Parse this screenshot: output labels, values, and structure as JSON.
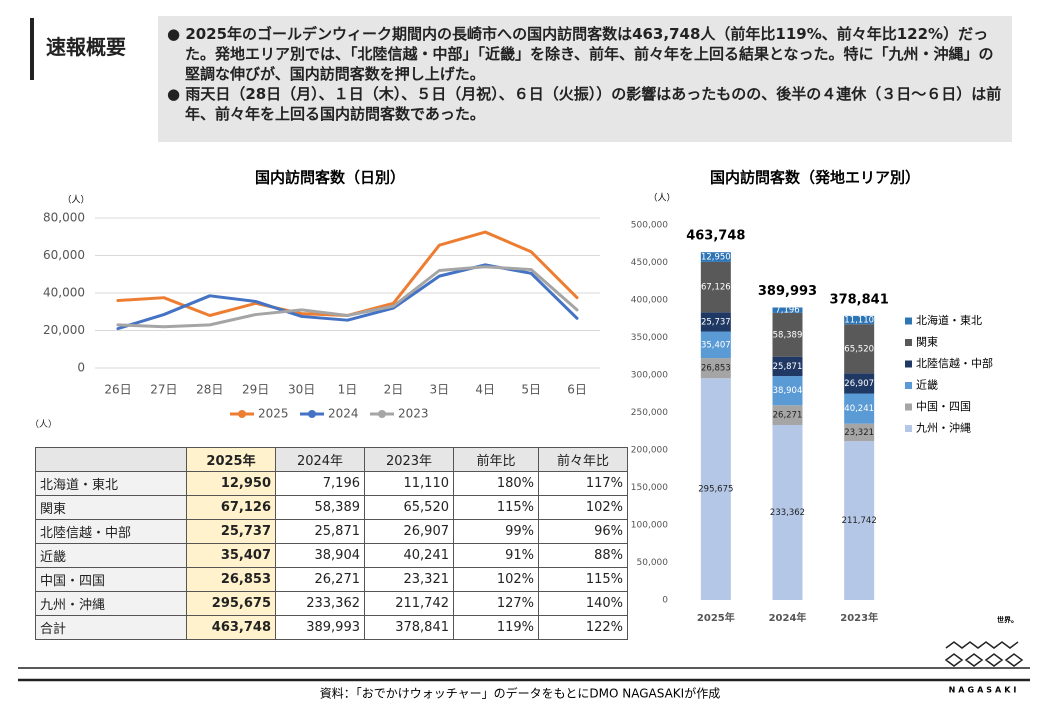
{
  "header": {
    "title": "速報概要",
    "bullets": [
      "2025年のゴールデンウィーク期間内の長崎市への国内訪問客数は463,748人（前年比119%、前々年比122%）だった。発地エリア別では、「北陸信越・中部」「近畿」を除き、前年、前々年を上回る結果となった。特に「九州・沖縄」の堅調な伸びが、国内訪問客数を押し上げた。",
      "雨天日（28日（月）、１日（木）、５日（月祝）、６日（火振））の影響はあったものの、後半の４連休（３日～６日）は前年、前々年を上回る国内訪問客数であった。"
    ]
  },
  "chart_data": [
    {
      "type": "line",
      "title": "国内訪問客数（日別）",
      "y_label": "（人）",
      "categories": [
        "26日",
        "27日",
        "28日",
        "29日",
        "30日",
        "1日",
        "2日",
        "3日",
        "4日",
        "5日",
        "6日"
      ],
      "series": [
        {
          "name": "2025",
          "color": "#ed7d31",
          "values": [
            36000,
            37500,
            28000,
            34500,
            29000,
            28000,
            34500,
            65500,
            72500,
            62000,
            37500
          ]
        },
        {
          "name": "2024",
          "color": "#4472c4",
          "values": [
            21000,
            28500,
            38500,
            35500,
            27500,
            25500,
            32000,
            49000,
            55000,
            50500,
            26500
          ]
        },
        {
          "name": "2023",
          "color": "#a5a5a5",
          "values": [
            23000,
            22000,
            23000,
            28500,
            31000,
            28000,
            33000,
            52000,
            54000,
            52500,
            31000
          ]
        }
      ],
      "ylim": [
        0,
        80000
      ],
      "yticks": [
        0,
        {
          "value": 20000,
          "label": "20,000"
        },
        {
          "value": 40000,
          "label": "40,000"
        },
        {
          "value": 60000,
          "label": "60,000"
        },
        {
          "value": 80000,
          "label": "80,000"
        }
      ],
      "grid": true
    },
    {
      "type": "stacked_bar",
      "title": "国内訪問客数（発地エリア別）",
      "y_label": "（人）",
      "categories": [
        "2025年",
        "2024年",
        "2023年"
      ],
      "total_labels": [
        "463,748",
        "389,993",
        "378,841"
      ],
      "series": [
        {
          "name": "九州・沖縄",
          "color": "#b4c7e7",
          "text_color": "#222",
          "values": [
            295675,
            233362,
            211742
          ],
          "value_labels": [
            "295,675",
            "233,362",
            "211,742"
          ]
        },
        {
          "name": "中国・四国",
          "color": "#a5a5a5",
          "text_color": "#222",
          "values": [
            26853,
            26271,
            23321
          ],
          "value_labels": [
            "26,853",
            "26,271",
            "23,321"
          ]
        },
        {
          "name": "近畿",
          "color": "#5b9bd5",
          "text_color": "#fff",
          "values": [
            35407,
            38904,
            40241
          ],
          "value_labels": [
            "35,407",
            "38,904",
            "40,241"
          ]
        },
        {
          "name": "北陸信越・中部",
          "color": "#203864",
          "text_color": "#fff",
          "values": [
            25737,
            25871,
            26907
          ],
          "value_labels": [
            "25,737",
            "25,871",
            "26,907"
          ]
        },
        {
          "name": "関東",
          "color": "#595959",
          "text_color": "#fff",
          "values": [
            67126,
            58389,
            65520
          ],
          "value_labels": [
            "67,126",
            "58,389",
            "65,520"
          ]
        },
        {
          "name": "北海道・東北",
          "color": "#2e75b6",
          "text_color": "#fff",
          "values": [
            12950,
            7196,
            11110
          ],
          "value_labels": [
            "12,950",
            "7,196",
            "11,110"
          ]
        }
      ],
      "ylim": [
        0,
        500000
      ],
      "yticks": [
        0,
        {
          "value": 50000,
          "label": "50,000"
        },
        {
          "value": 100000,
          "label": "100,000"
        },
        {
          "value": 150000,
          "label": "150,000"
        },
        {
          "value": 200000,
          "label": "200,000"
        },
        {
          "value": 250000,
          "label": "250,000"
        },
        {
          "value": 300000,
          "label": "300,000"
        },
        {
          "value": 350000,
          "label": "350,000"
        },
        {
          "value": 400000,
          "label": "400,000"
        },
        {
          "value": 450000,
          "label": "450,000"
        },
        {
          "value": 500000,
          "label": "500,000"
        }
      ],
      "grid": false
    }
  ],
  "table": {
    "unit": "（人）",
    "header": [
      "2025年",
      "2024年",
      "2023年",
      "前年比",
      "前々年比"
    ],
    "rows": [
      [
        "北海道・東北",
        "12,950",
        "7,196",
        "11,110",
        "180%",
        "117%"
      ],
      [
        "関東",
        "67,126",
        "58,389",
        "65,520",
        "115%",
        "102%"
      ],
      [
        "北陸信越・中部",
        "25,737",
        "25,871",
        "26,907",
        "99%",
        "96%"
      ],
      [
        "近畿",
        "35,407",
        "38,904",
        "40,241",
        "91%",
        "88%"
      ],
      [
        "中国・四国",
        "26,853",
        "26,271",
        "23,321",
        "102%",
        "115%"
      ],
      [
        "九州・沖縄",
        "295,675",
        "233,362",
        "211,742",
        "127%",
        "140%"
      ],
      [
        "合計",
        "463,748",
        "389,993",
        "378,841",
        "119%",
        "122%"
      ]
    ]
  },
  "footer": {
    "source": "資料：「おでかけウォッチャー」のデータをもとにDMO NAGASAKIが作成",
    "logo_top": "世界。",
    "logo_bottom": "NAGASAKI"
  }
}
